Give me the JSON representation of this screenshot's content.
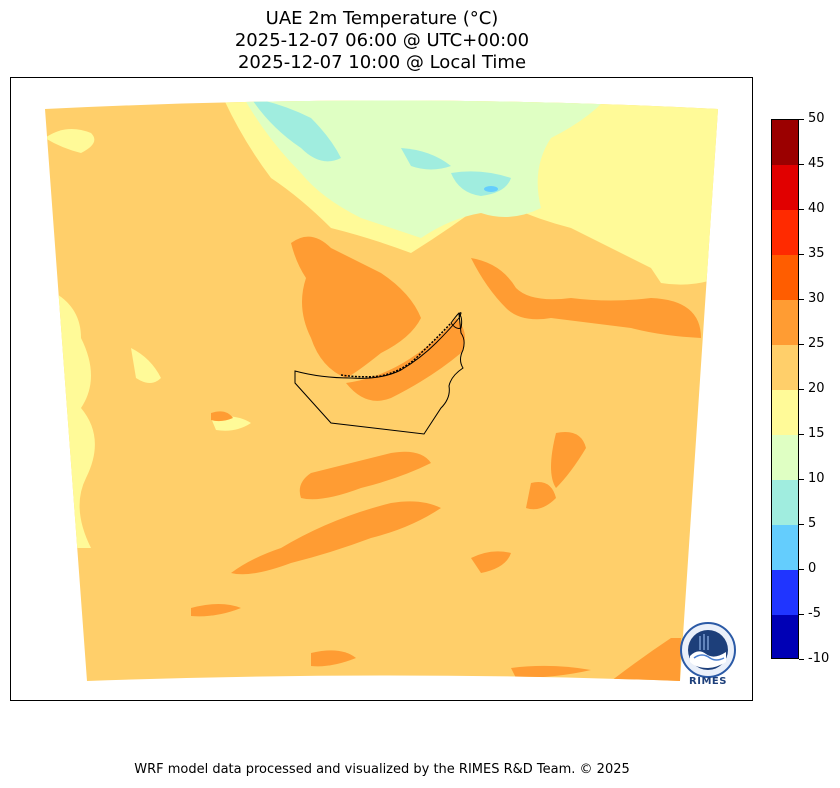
{
  "title": {
    "line1": "UAE 2m Temperature (°C)",
    "line2": "2025-12-07 06:00 @ UTC+00:00",
    "line3": "2025-12-07 10:00 @ Local Time"
  },
  "colorbar": {
    "unit": "°C",
    "levels": [
      {
        "label": "50",
        "value": 50
      },
      {
        "label": "45",
        "value": 45
      },
      {
        "label": "40",
        "value": 40
      },
      {
        "label": "35",
        "value": 35
      },
      {
        "label": "30",
        "value": 30
      },
      {
        "label": "25",
        "value": 25
      },
      {
        "label": "20",
        "value": 20
      },
      {
        "label": "15",
        "value": 15
      },
      {
        "label": "10",
        "value": 10
      },
      {
        "label": "5",
        "value": 5
      },
      {
        "label": "0",
        "value": 0
      },
      {
        "label": "-5",
        "value": -5
      },
      {
        "label": "-10",
        "value": -10
      }
    ],
    "colors": [
      "#9b0000",
      "#e10000",
      "#ff2a00",
      "#ff5d00",
      "#ff9c33",
      "#ffcf6a",
      "#fffa98",
      "#dfffc3",
      "#a0eddf",
      "#64cdfd",
      "#2035ff",
      "#0000b5"
    ]
  },
  "map": {
    "region": "UAE",
    "colors": {
      "band_20_25": "#ffcf6a",
      "band_25_30": "#ff9c33",
      "band_15_20": "#fffa98",
      "band_10_15": "#dfffc3",
      "band_5_10": "#a0eddf",
      "band_0_5": "#64cdfd"
    }
  },
  "logo": {
    "text": "RIMES"
  },
  "footer": {
    "credit": "WRF model data processed and visualized by the RIMES R&D Team. © 2025"
  }
}
